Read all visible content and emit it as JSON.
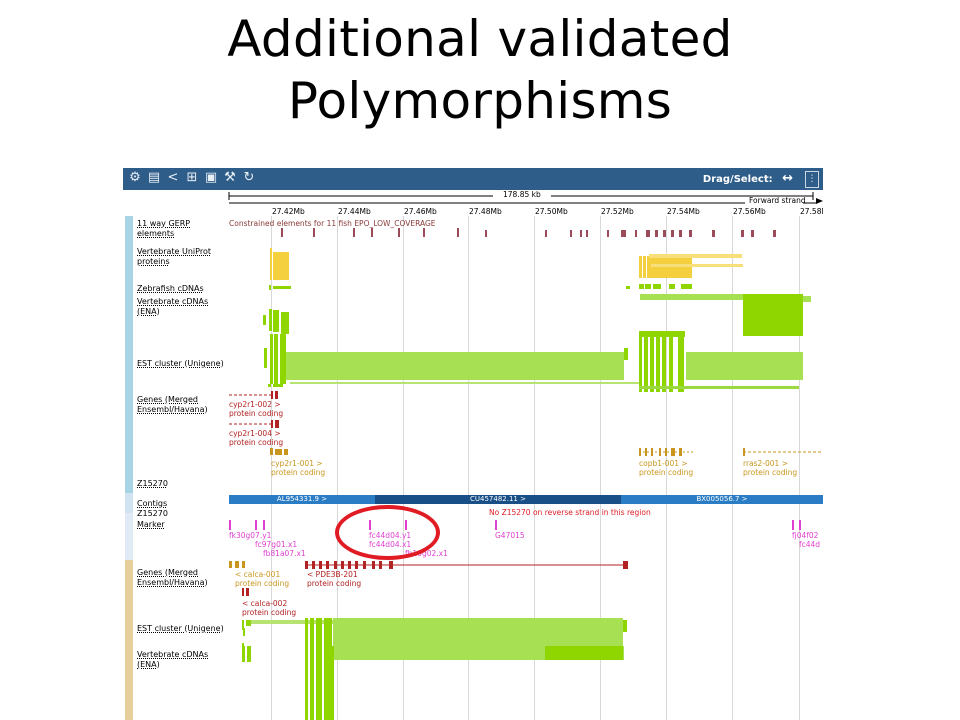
{
  "slide": {
    "title_line1": "Additional validated",
    "title_line2": "Polymorphisms"
  },
  "toolbar": {
    "icons": [
      "gear-icon",
      "export-icon",
      "share-icon",
      "resize-icon",
      "image-icon",
      "config-icon",
      "reset-icon"
    ],
    "drag_label": "Drag/Select:",
    "drag_glyph": "↔",
    "menu_glyph": "⋮"
  },
  "ruler": {
    "span": "178.85 kb",
    "strand": "Forward strand"
  },
  "axis": {
    "ticks": [
      "27.42Mb",
      "27.44Mb",
      "27.46Mb",
      "27.48Mb",
      "27.50Mb",
      "27.52Mb",
      "27.54Mb",
      "27.56Mb",
      "27.58M"
    ]
  },
  "tracks": {
    "gerp": {
      "label": "11 way GERP elements",
      "caption": "Constrained elements for 11 fish EPO_LOW_COVERAGE"
    },
    "uniprot": {
      "label": "Vertebrate UniProt proteins"
    },
    "zebrafish": {
      "label": "Zebrafish cDNAs"
    },
    "vcdna": {
      "label": "Vertebrate cDNAs (ENA)"
    },
    "est": {
      "label": "EST cluster (Unigene)"
    },
    "genes": {
      "label": "Genes (Merged Ensembl/Havana)"
    },
    "z15270": {
      "label": "Z15270"
    },
    "contigs": {
      "label": "Contigs"
    },
    "marker": {
      "label1": "Z15270",
      "label2": "Marker"
    },
    "genes2": {
      "label": "Genes (Merged Ensembl/Havana)"
    },
    "est2": {
      "label": "EST cluster (Unigene)"
    },
    "vcdna2": {
      "label": "Vertebrate cDNAs (ENA)"
    }
  },
  "gene_labels": {
    "cyp2r1_002": "cyp2r1-002 >",
    "cyp2r1_004": "cyp2r1-004 >",
    "protein_coding": "protein coding",
    "cyp2r1_001": "cyp2r1-001 >",
    "copb1_001": "copb1-001 >",
    "rras2_001": "rras2-001 >",
    "calca_001": "< calca-001",
    "pde3b_201": "< PDE3B-201",
    "calca_002": "< calca-002"
  },
  "contigs": {
    "c1": "AL954331.9 >",
    "c2": "CU457482.11 >",
    "c3": "BX005056.7 >"
  },
  "markers": {
    "note": "No Z15270 on reverse strand in this region",
    "fk30g07": "fk30g07.y1",
    "fc97g01": "fc97g01.x1",
    "fb81a07": "fb81a07.x1",
    "fc44d04": "fc44d04.y1",
    "fc44d04x": "fc44d04.x1",
    "fb10g02": "fb10g02.x1",
    "g47015": "G47015",
    "fj04f02": "fj04f02",
    "fc44d": "fc44d"
  },
  "colors": {
    "toolbar": "#2f5d8a",
    "uniprot": "#f4d03f",
    "cdna": "#8fd600",
    "gene": "#b22222",
    "gene_gold": "#c8961e",
    "contig_light": "#2a7dc4",
    "contig_dark": "#184f86",
    "marker": "#e040d0",
    "highlight": "#e01b24",
    "strip_blue": "#a9d4e6",
    "strip_tan": "#e7cf9c"
  }
}
